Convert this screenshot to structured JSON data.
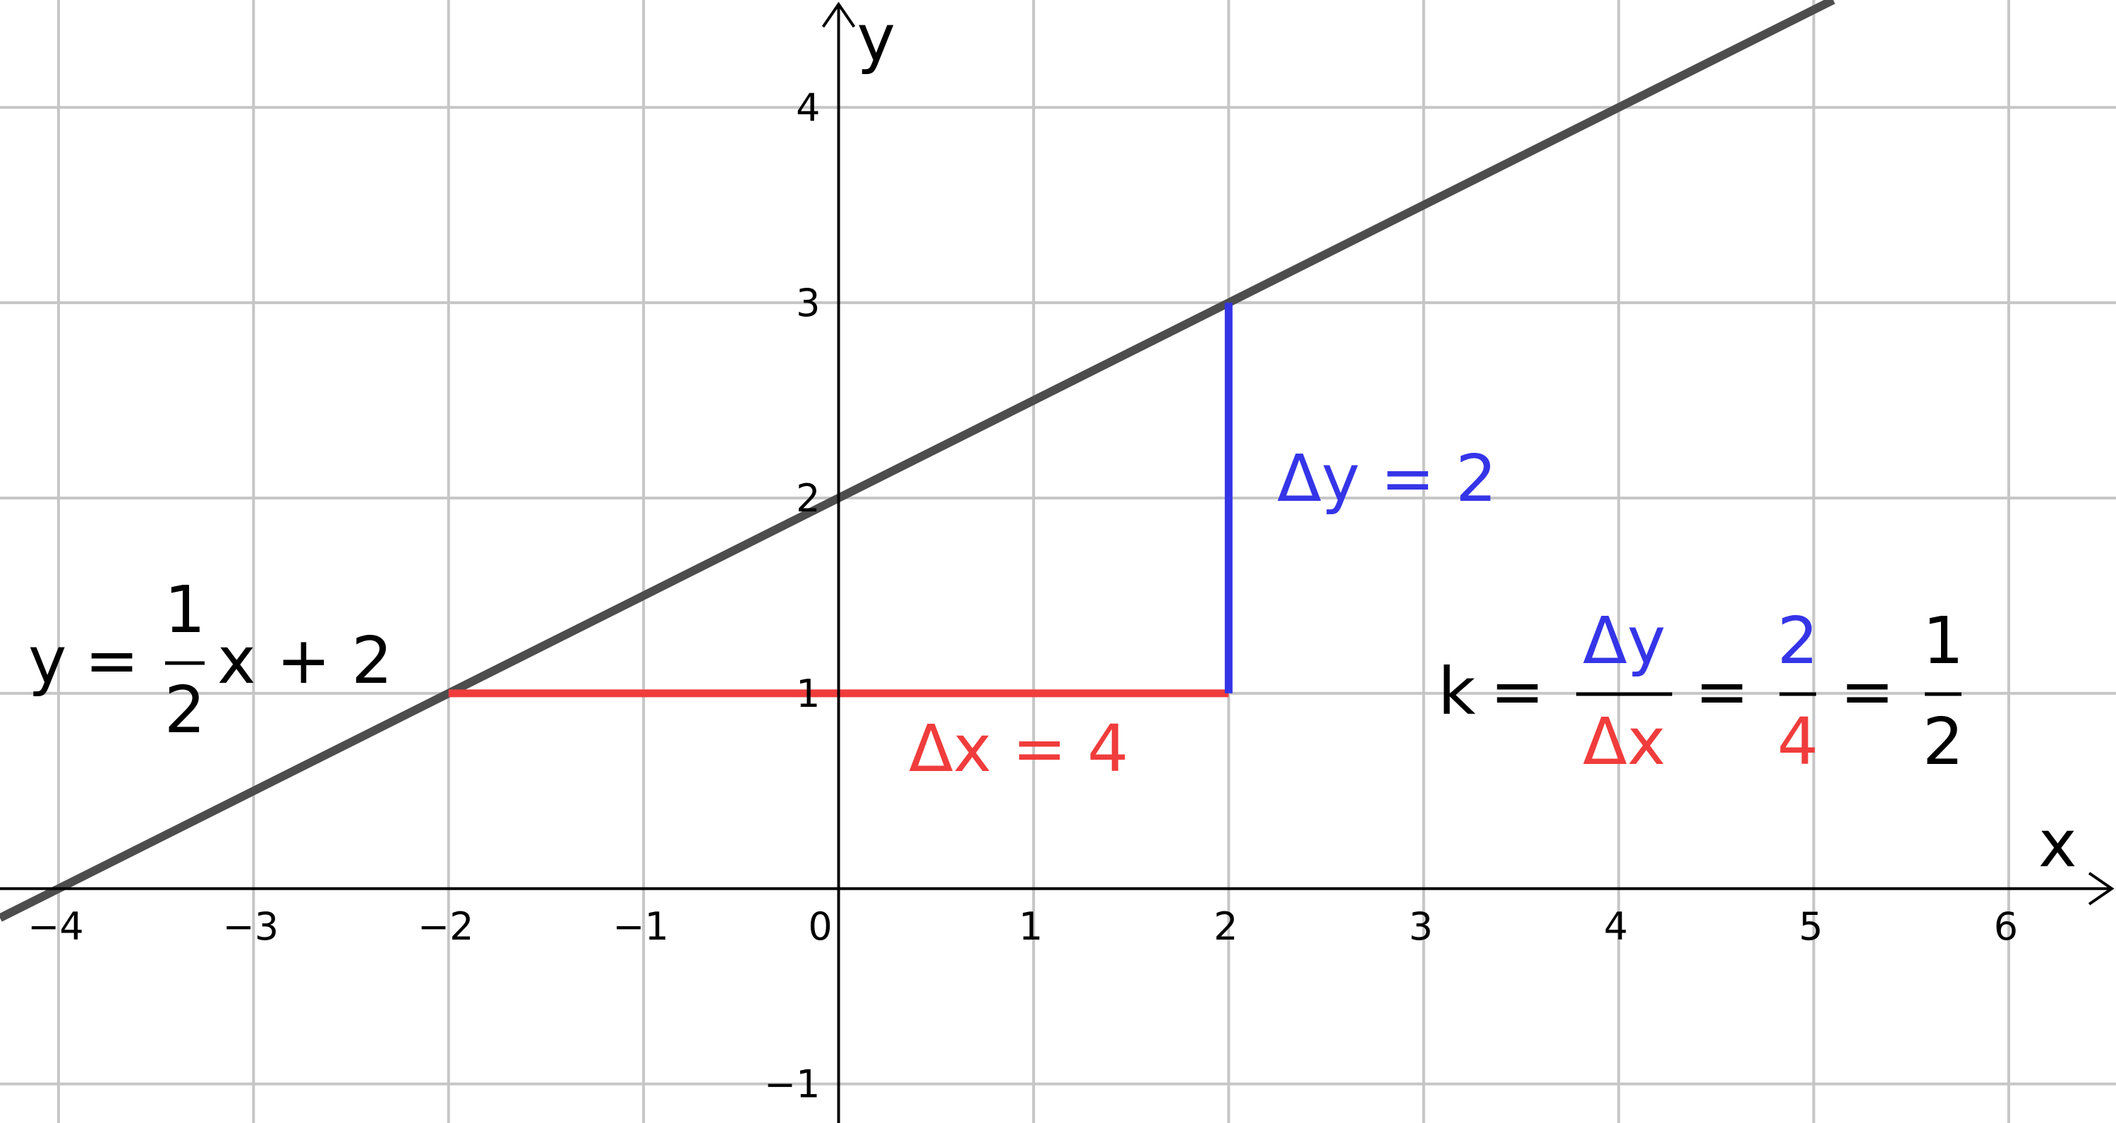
{
  "chart_data": {
    "type": "line",
    "xlabel": "x",
    "ylabel": "y",
    "xlim": [
      -4.3,
      6.55
    ],
    "ylim": [
      -1.2,
      4.55
    ],
    "grid": true,
    "x_ticks": [
      -4,
      -3,
      -2,
      -1,
      0,
      1,
      2,
      3,
      4,
      5,
      6
    ],
    "x_tick_labels": [
      "−4",
      "−3",
      "−2",
      "−1",
      "0",
      "1",
      "2",
      "3",
      "4",
      "5",
      "6"
    ],
    "y_ticks": [
      -1,
      1,
      2,
      3,
      4
    ],
    "y_tick_labels": [
      "−1",
      "1",
      "2",
      "3",
      "4"
    ],
    "line": {
      "slope": 0.5,
      "intercept": 2,
      "color": "#4d4d4d",
      "equation": {
        "lhs": "y",
        "eq": "=",
        "num": "1",
        "den": "2",
        "rest": "x + 2"
      }
    },
    "delta_x": {
      "from": [
        -2,
        1
      ],
      "to": [
        2,
        1
      ],
      "color": "#f03c3c",
      "label": "Δx = 4"
    },
    "delta_y": {
      "from": [
        2,
        1
      ],
      "to": [
        2,
        3
      ],
      "color": "#3535e8",
      "label": "Δy = 2"
    },
    "slope_formula": {
      "k": "k",
      "eq": "=",
      "num1": "Δy",
      "den1": "Δx",
      "num2": "2",
      "den2": "4",
      "num3": "1",
      "den3": "2"
    }
  }
}
